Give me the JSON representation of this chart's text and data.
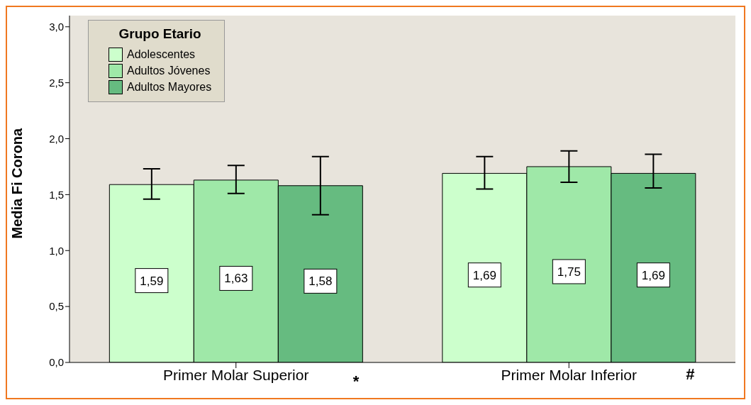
{
  "chart_data": {
    "type": "bar",
    "ylabel": "Media Fi Corona",
    "legend_title": "Grupo Etario",
    "categories": [
      "Primer Molar Superior",
      "Primer Molar Inferior"
    ],
    "series": [
      {
        "name": "Adolescentes",
        "color": "#ccffcc",
        "values": [
          1.59,
          1.69
        ],
        "value_labels": [
          "1,59",
          "1,69"
        ],
        "errors": [
          [
            1.46,
            1.73
          ],
          [
            1.55,
            1.84
          ]
        ]
      },
      {
        "name": "Adultos Jóvenes",
        "color": "#9fe8a8",
        "values": [
          1.63,
          1.75
        ],
        "value_labels": [
          "1,63",
          "1,75"
        ],
        "errors": [
          [
            1.51,
            1.76
          ],
          [
            1.61,
            1.89
          ]
        ]
      },
      {
        "name": "Adultos Mayores",
        "color": "#66bb80",
        "values": [
          1.58,
          1.69
        ],
        "value_labels": [
          "1,58",
          "1,69"
        ],
        "errors": [
          [
            1.32,
            1.84
          ],
          [
            1.56,
            1.86
          ]
        ]
      }
    ],
    "ylim": [
      0,
      3.1
    ],
    "yticks": [
      {
        "value": 0,
        "label": "0,0"
      },
      {
        "value": 0.5,
        "label": "0,5"
      },
      {
        "value": 1,
        "label": "1,0"
      },
      {
        "value": 1.5,
        "label": "1,5"
      },
      {
        "value": 2,
        "label": "2,0"
      },
      {
        "value": 2.5,
        "label": "2,5"
      },
      {
        "value": 3,
        "label": "3,0"
      }
    ],
    "grid": false,
    "legend": "top left",
    "annotations": [
      "*",
      "#"
    ]
  }
}
